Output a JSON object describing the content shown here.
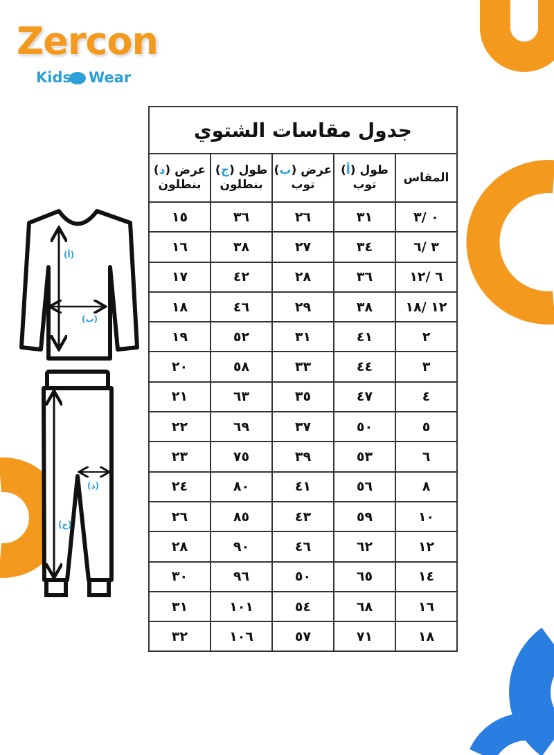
{
  "logo": {
    "brand": "Zercon",
    "sub_left": "Kids",
    "sub_right": "Wear"
  },
  "colors": {
    "orange": "#f39a1e",
    "blue": "#2a7de1",
    "title": "#f2a93b",
    "label_blue": "#2a9fd8"
  },
  "table": {
    "title": "جدول مقاسات الشتوي",
    "headers": [
      {
        "line1": "المقاس",
        "letter": "",
        "line2": ""
      },
      {
        "line1": "طول",
        "letter": "أ",
        "line2": "توب"
      },
      {
        "line1": "عرض",
        "letter": "ب",
        "line2": "توب"
      },
      {
        "line1": "طول",
        "letter": "ج",
        "line2": "بنطلون"
      },
      {
        "line1": "عرض",
        "letter": "د",
        "line2": "بنطلون"
      }
    ],
    "rows": [
      [
        "٠ /٣",
        "٣١",
        "٢٦",
        "٣٦",
        "١٥"
      ],
      [
        "٣ /٦",
        "٣٤",
        "٢٧",
        "٣٨",
        "١٦"
      ],
      [
        "٦ /١٢",
        "٣٦",
        "٢٨",
        "٤٢",
        "١٧"
      ],
      [
        "١٢ /١٨",
        "٣٨",
        "٢٩",
        "٤٦",
        "١٨"
      ],
      [
        "٢",
        "٤١",
        "٣١",
        "٥٢",
        "١٩"
      ],
      [
        "٣",
        "٤٤",
        "٣٣",
        "٥٨",
        "٢٠"
      ],
      [
        "٤",
        "٤٧",
        "٣٥",
        "٦٣",
        "٢١"
      ],
      [
        "٥",
        "٥٠",
        "٣٧",
        "٦٩",
        "٢٢"
      ],
      [
        "٦",
        "٥٣",
        "٣٩",
        "٧٥",
        "٢٣"
      ],
      [
        "٨",
        "٥٦",
        "٤١",
        "٨٠",
        "٢٤"
      ],
      [
        "١٠",
        "٥٩",
        "٤٣",
        "٨٥",
        "٢٦"
      ],
      [
        "١٢",
        "٦٢",
        "٤٦",
        "٩٠",
        "٢٨"
      ],
      [
        "١٤",
        "٦٥",
        "٥٠",
        "٩٦",
        "٣٠"
      ],
      [
        "١٦",
        "٦٨",
        "٥٤",
        "١٠١",
        "٣١"
      ],
      [
        "١٨",
        "٧١",
        "٥٧",
        "١٠٦",
        "٣٢"
      ]
    ]
  },
  "figure": {
    "label_a": "(أ)",
    "label_b": "(ب)",
    "label_c": "(ج)",
    "label_d": "(د)"
  }
}
